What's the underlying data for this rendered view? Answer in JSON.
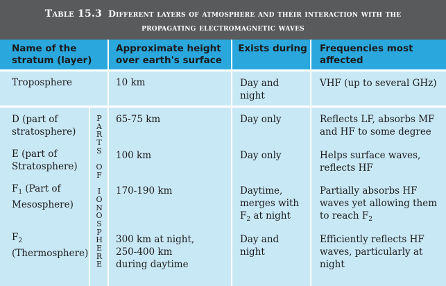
{
  "caption": {
    "label": "Table 15.3",
    "title_line1": "Different layers of atmosphere and their interaction with the",
    "title_line2": "propagating electromagnetic waves"
  },
  "headers": {
    "col1_line1": "Name of the",
    "col1_line2": "stratum (layer)",
    "col2_line1": "Approximate height",
    "col2_line2": "over earth's surface",
    "col3": "Exists during",
    "col4_line1": "Frequencies most",
    "col4_line2": "affected"
  },
  "ionosphere_label": [
    "P",
    "A",
    "R",
    "T",
    "S",
    "",
    "O",
    "F",
    "",
    "I",
    "O",
    "N",
    "O",
    "S",
    "P",
    "H",
    "E",
    "R",
    "E"
  ],
  "rows": {
    "troposphere": {
      "name": "Troposphere",
      "height": "10 km",
      "exists_line1": "Day and",
      "exists_line2": "night",
      "frequencies": "VHF (up to several GHz)"
    },
    "d_layer": {
      "name_line1": "D  (part of",
      "name_line2": "stratosphere)",
      "height": "65-75 km",
      "exists": "Day only",
      "freq_line1": "Reflects LF, absorbs MF",
      "freq_line2": "and HF to some degree"
    },
    "e_layer": {
      "name_line1": "E (part of",
      "name_line2": "Stratosphere)",
      "height": "100 km",
      "exists": "Day only",
      "freq_line1": "Helps surface waves,",
      "freq_line2": "reflects HF"
    },
    "f1_layer": {
      "name_letter": "F",
      "name_sub": "1",
      "name_rest": " (Part of",
      "name_line2": "Mesosphere)",
      "height": "170-190  km",
      "exists_line1": "Daytime,",
      "exists_line2": "merges with",
      "exists_f": "F",
      "exists_sub": "2",
      "exists_rest": " at night",
      "freq_line1": "Partially absorbs HF",
      "freq_line2": "waves yet allowing them",
      "freq_line3": "to reach F",
      "freq_sub": "2"
    },
    "f2_layer": {
      "name_letter": "F",
      "name_sub": "2",
      "name_line2": "(Thermosphere)",
      "height_line1": "300 km at night,",
      "height_line2": "250-400  km",
      "height_line3": "during daytime",
      "exists_line1": "Day and",
      "exists_line2": "night",
      "freq_line1": "Efficiently reflects HF",
      "freq_line2": "waves, particularly at",
      "freq_line3": "night"
    }
  },
  "colors": {
    "caption_bg": "#595a5c",
    "header_bg": "#2aa8de",
    "body_bg": "#c9e8f6",
    "divider": "#ffffff"
  }
}
